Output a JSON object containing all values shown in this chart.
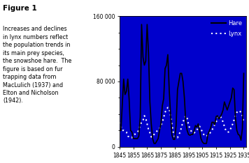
{
  "title": "Figure 1",
  "caption": "Increases and declines\nin lynx numbers reflect\nthe population trends in\nits main prey species,\nthe snowshoe hare.  The\nfigure is based on fur\ntrapping data from\nMacLulich (1937) and\nElton and Nicholson\n(1942).",
  "bg_color": "#0000CC",
  "fig_bg": "#FFFFFF",
  "hare_color": "#000000",
  "lynx_color": "#FFFFFF",
  "ylim": [
    0,
    160000
  ],
  "yticks": [
    0,
    80000,
    160000
  ],
  "ytick_labels": [
    "0",
    "80 000",
    "160 000"
  ],
  "xlim": [
    1845,
    1937
  ],
  "xticks": [
    1845,
    1855,
    1865,
    1875,
    1885,
    1895,
    1905,
    1915,
    1925,
    1935
  ],
  "years": [
    1845,
    1846,
    1847,
    1848,
    1849,
    1850,
    1851,
    1852,
    1853,
    1854,
    1855,
    1856,
    1857,
    1858,
    1859,
    1860,
    1861,
    1862,
    1863,
    1864,
    1865,
    1866,
    1867,
    1868,
    1869,
    1870,
    1871,
    1872,
    1873,
    1874,
    1875,
    1876,
    1877,
    1878,
    1879,
    1880,
    1881,
    1882,
    1883,
    1884,
    1885,
    1886,
    1887,
    1888,
    1889,
    1890,
    1891,
    1892,
    1893,
    1894,
    1895,
    1896,
    1897,
    1898,
    1899,
    1900,
    1901,
    1902,
    1903,
    1904,
    1905,
    1906,
    1907,
    1908,
    1909,
    1910,
    1911,
    1912,
    1913,
    1914,
    1915,
    1916,
    1917,
    1918,
    1919,
    1920,
    1921,
    1922,
    1923,
    1924,
    1925,
    1926,
    1927,
    1928,
    1929,
    1930,
    1931,
    1932,
    1933,
    1934,
    1935
  ],
  "hare": [
    20000,
    20000,
    52000,
    83000,
    64000,
    68000,
    83000,
    57000,
    20000,
    18000,
    10000,
    10000,
    10000,
    10000,
    13000,
    36000,
    150000,
    110000,
    100000,
    105000,
    150000,
    115000,
    55000,
    28000,
    10000,
    4000,
    4000,
    7000,
    10000,
    20000,
    28000,
    50000,
    59000,
    96000,
    100000,
    113000,
    70000,
    38000,
    14000,
    9000,
    9000,
    26000,
    70000,
    80000,
    90000,
    90000,
    80000,
    60000,
    30000,
    20000,
    15000,
    14000,
    15000,
    15000,
    20000,
    26000,
    24000,
    28000,
    20000,
    10000,
    6000,
    4000,
    4000,
    4000,
    15000,
    19000,
    23000,
    30000,
    30000,
    27000,
    37000,
    38000,
    34000,
    37000,
    40000,
    45000,
    55000,
    50000,
    45000,
    50000,
    55000,
    60000,
    72000,
    70000,
    35000,
    20000,
    15000,
    14000,
    8000,
    22000,
    90000
  ],
  "lynx": [
    30000,
    25000,
    20000,
    20000,
    19000,
    18000,
    13000,
    12000,
    12000,
    11000,
    14000,
    15000,
    17000,
    18000,
    20000,
    27000,
    30000,
    32000,
    38000,
    35000,
    28000,
    21000,
    17000,
    12000,
    12000,
    15000,
    17000,
    19000,
    20000,
    22000,
    26000,
    30000,
    36000,
    42000,
    46000,
    48000,
    47000,
    38000,
    27000,
    17000,
    12000,
    12000,
    11000,
    15000,
    18000,
    25000,
    30000,
    35000,
    38000,
    35000,
    27000,
    22000,
    19000,
    17000,
    17000,
    18000,
    20000,
    24000,
    25000,
    22000,
    18000,
    15000,
    13000,
    13000,
    14000,
    15000,
    18000,
    20000,
    24000,
    27000,
    30000,
    35000,
    38000,
    37000,
    35000,
    30000,
    25000,
    20000,
    18000,
    18000,
    20000,
    24000,
    28000,
    33000,
    38000,
    42000,
    44000,
    44000,
    42000,
    38000,
    30000
  ]
}
